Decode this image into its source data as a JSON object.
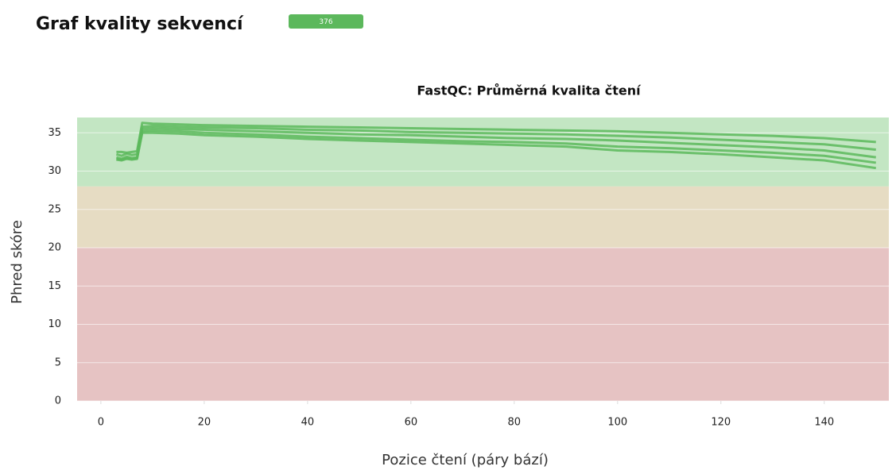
{
  "header": {
    "title": "Graf kvality sekvencí",
    "badge": 376
  },
  "chart_data": {
    "type": "line",
    "title": "FastQC: Průměrná kvalita čtení",
    "x_label": "Pozice čtení (páry bází)",
    "y_label": "Phred skóre",
    "xlim": [
      -4.6,
      152.5
    ],
    "ylim": [
      0,
      37
    ],
    "xticks": [
      0,
      20,
      40,
      60,
      80,
      100,
      120,
      140
    ],
    "yticks": [
      0,
      5,
      10,
      15,
      20,
      25,
      30,
      35
    ],
    "grid": true,
    "bands": [
      {
        "from": 28,
        "to": 37,
        "color": "#c3e6c3"
      },
      {
        "from": 20,
        "to": 28,
        "color": "#e6dcc3"
      },
      {
        "from": 0,
        "to": 20,
        "color": "#e6c3c3"
      }
    ],
    "x": [
      3,
      4,
      5,
      6,
      7,
      8,
      10,
      15,
      20,
      30,
      40,
      50,
      60,
      70,
      80,
      90,
      100,
      110,
      120,
      130,
      140,
      150
    ],
    "series": [
      {
        "color": "#5cb85c",
        "values": [
          32.5,
          32.5,
          32.4,
          32.5,
          32.6,
          36.3,
          36.2,
          36.1,
          36,
          35.9,
          35.8,
          35.7,
          35.6,
          35.5,
          35.4,
          35.3,
          35.2,
          35,
          34.8,
          34.6,
          34.3,
          33.8
        ]
      },
      {
        "color": "#5cb85c",
        "values": [
          32.2,
          32,
          32.3,
          32.1,
          32.2,
          35.8,
          35.9,
          35.8,
          35.7,
          35.6,
          35.4,
          35.3,
          35.1,
          35,
          34.9,
          34.8,
          34.6,
          34.4,
          34.1,
          33.8,
          33.5,
          32.8
        ]
      },
      {
        "color": "#5cb85c",
        "values": [
          31.8,
          31.6,
          31.9,
          31.7,
          31.8,
          35.5,
          35.6,
          35.5,
          35.4,
          35.2,
          35,
          34.8,
          34.7,
          34.5,
          34.3,
          34.2,
          34,
          33.7,
          33.4,
          33.1,
          32.7,
          31.8
        ]
      },
      {
        "color": "#5cb85c",
        "values": [
          31.6,
          31.5,
          31.7,
          31.6,
          31.7,
          35.2,
          35.3,
          35.2,
          35,
          34.8,
          34.5,
          34.3,
          34.1,
          33.9,
          33.8,
          33.6,
          33.2,
          33,
          32.7,
          32.4,
          32,
          31.1
        ]
      },
      {
        "color": "#5cb85c",
        "values": [
          31.5,
          31.4,
          31.6,
          31.5,
          31.6,
          35,
          35,
          34.9,
          34.7,
          34.5,
          34.2,
          34,
          33.8,
          33.6,
          33.4,
          33.2,
          32.7,
          32.5,
          32.2,
          31.8,
          31.4,
          30.4
        ]
      }
    ]
  }
}
